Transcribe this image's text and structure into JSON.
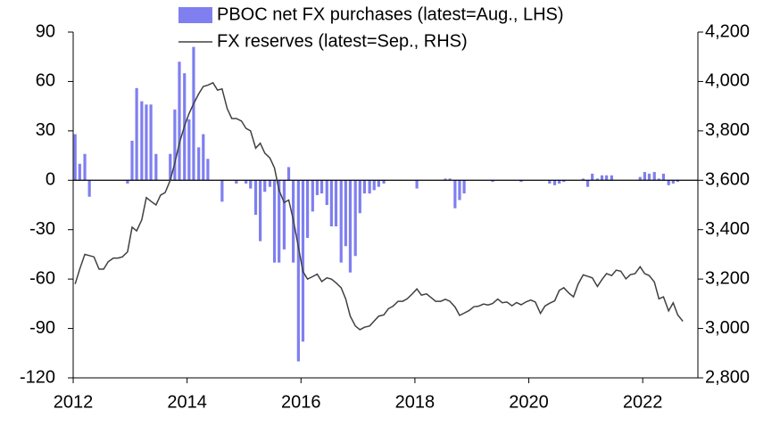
{
  "chart_data": {
    "type": "bar",
    "x": [
      2012,
      2012.08,
      2012.17,
      2012.25,
      2012.33,
      2012.42,
      2012.5,
      2012.58,
      2012.67,
      2012.75,
      2012.83,
      2012.92,
      2013,
      2013.08,
      2013.17,
      2013.25,
      2013.33,
      2013.42,
      2013.5,
      2013.58,
      2013.67,
      2013.75,
      2013.83,
      2013.92,
      2014,
      2014.08,
      2014.17,
      2014.25,
      2014.33,
      2014.42,
      2014.5,
      2014.58,
      2014.67,
      2014.75,
      2014.83,
      2014.92,
      2015,
      2015.08,
      2015.17,
      2015.25,
      2015.33,
      2015.42,
      2015.5,
      2015.58,
      2015.67,
      2015.75,
      2015.83,
      2015.92,
      2016,
      2016.08,
      2016.17,
      2016.25,
      2016.33,
      2016.42,
      2016.5,
      2016.58,
      2016.67,
      2016.75,
      2016.83,
      2016.92,
      2017,
      2017.08,
      2017.17,
      2017.25,
      2017.33,
      2017.42,
      2017.5,
      2017.58,
      2017.67,
      2017.75,
      2017.83,
      2017.92,
      2018,
      2018.08,
      2018.17,
      2018.25,
      2018.33,
      2018.42,
      2018.5,
      2018.58,
      2018.67,
      2018.75,
      2018.83,
      2018.92,
      2019,
      2019.08,
      2019.17,
      2019.25,
      2019.33,
      2019.42,
      2019.5,
      2019.58,
      2019.67,
      2019.75,
      2019.83,
      2019.92,
      2020,
      2020.08,
      2020.17,
      2020.25,
      2020.33,
      2020.42,
      2020.5,
      2020.58,
      2020.67,
      2020.75,
      2020.83,
      2020.92,
      2021,
      2021.08,
      2021.17,
      2021.25,
      2021.33,
      2021.42,
      2021.5,
      2021.58,
      2021.67,
      2021.75,
      2021.83,
      2021.92,
      2022,
      2022.08,
      2022.17,
      2022.25,
      2022.33,
      2022.42,
      2022.5,
      2022.58,
      2022.67
    ],
    "series": [
      {
        "name": "PBOC net FX purchases (latest=Aug., LHS)",
        "type": "bar",
        "color": "#7f7ff0",
        "values": [
          28,
          10,
          16,
          -10,
          0,
          0,
          0,
          0,
          0,
          0,
          0,
          -2,
          24,
          56,
          48,
          46,
          46,
          16,
          0,
          0,
          16,
          43,
          72,
          65,
          37,
          81,
          20,
          28,
          13,
          0,
          0,
          -13,
          0,
          0,
          -2,
          0,
          -2,
          -5,
          -21,
          -37,
          -7,
          -4,
          -50,
          -50,
          -42,
          8,
          -50,
          -110,
          -98,
          -35,
          -19,
          -9,
          -8,
          -15,
          -28,
          -28,
          -50,
          -40,
          -56,
          -46,
          -20,
          -8,
          -8,
          -6,
          -4,
          -2,
          0,
          0,
          0,
          0,
          0,
          0,
          -5,
          0,
          0,
          0,
          0,
          0,
          1,
          1,
          -17,
          -12,
          -8,
          0,
          0,
          0,
          0,
          0,
          -1,
          0,
          0,
          0,
          0,
          0,
          -1,
          0,
          0,
          0,
          0,
          0,
          -2,
          -3,
          -2,
          -1,
          0,
          0,
          0,
          1,
          -4,
          4,
          1,
          3,
          3,
          3,
          0,
          0,
          0,
          0,
          0,
          2,
          5,
          4,
          5,
          1,
          4,
          -3,
          -2,
          -1,
          null
        ]
      },
      {
        "name": "FX reserves (latest=Sep., RHS)",
        "type": "line",
        "axis": "y2",
        "color": "#404040",
        "values": [
          3180,
          3240,
          3300,
          3295,
          3290,
          3240,
          3240,
          3270,
          3285,
          3285,
          3290,
          3310,
          3410,
          3395,
          3440,
          3530,
          3515,
          3500,
          3540,
          3550,
          3600,
          3670,
          3750,
          3820,
          3870,
          3910,
          3950,
          3980,
          3985,
          3995,
          3965,
          3970,
          3890,
          3850,
          3850,
          3840,
          3810,
          3800,
          3730,
          3750,
          3710,
          3690,
          3650,
          3560,
          3510,
          3520,
          3440,
          3330,
          3230,
          3200,
          3210,
          3220,
          3190,
          3205,
          3200,
          3185,
          3165,
          3120,
          3050,
          3010,
          2995,
          3005,
          3010,
          3030,
          3050,
          3055,
          3080,
          3090,
          3110,
          3110,
          3120,
          3140,
          3160,
          3135,
          3140,
          3125,
          3110,
          3110,
          3118,
          3110,
          3087,
          3053,
          3062,
          3073,
          3088,
          3090,
          3099,
          3095,
          3101,
          3119,
          3104,
          3107,
          3092,
          3105,
          3096,
          3108,
          3115,
          3107,
          3061,
          3091,
          3102,
          3112,
          3154,
          3165,
          3143,
          3128,
          3179,
          3217,
          3211,
          3205,
          3170,
          3198,
          3222,
          3214,
          3236,
          3232,
          3201,
          3218,
          3222,
          3250,
          3222,
          3214,
          3188,
          3120,
          3128,
          3071,
          3104,
          3055,
          3029
        ]
      }
    ],
    "xlim": [
      2012,
      2023
    ],
    "xticks": [
      2012,
      2014,
      2016,
      2018,
      2020,
      2022
    ],
    "ylim": [
      -120,
      90
    ],
    "yticks": [
      -120,
      -90,
      -60,
      -30,
      0,
      30,
      60,
      90
    ],
    "y2lim": [
      2800,
      4200
    ],
    "y2ticks": [
      {
        "value": 2800,
        "label": "2,800"
      },
      {
        "value": 3000,
        "label": "3,000"
      },
      {
        "value": 3200,
        "label": "3,200"
      },
      {
        "value": 3400,
        "label": "3,400"
      },
      {
        "value": 3600,
        "label": "3,600"
      },
      {
        "value": 3800,
        "label": "3,800"
      },
      {
        "value": 4000,
        "label": "4,000"
      },
      {
        "value": 4200,
        "label": "4,200"
      }
    ],
    "legend": "top"
  }
}
